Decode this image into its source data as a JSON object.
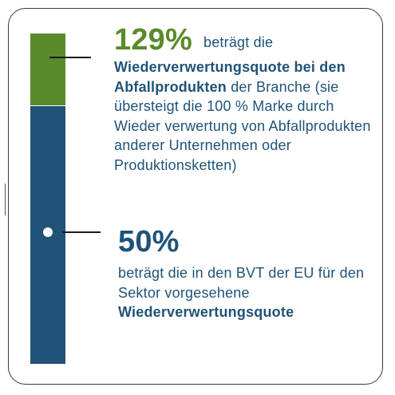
{
  "top_stat": {
    "value": "129%",
    "intro": "beträgt die",
    "highlight": "Wiederverwertungsquote bei den Abfallprodukten",
    "rest": " der Branche (sie übersteigt die 100 % Marke durch Wieder verwertung von Abfallprodukten anderer Unternehmen oder Produktionsketten)"
  },
  "bottom_stat": {
    "value": "50%",
    "intro": "beträgt die in den BVT der EU für den Sektor vorgesehene ",
    "highlight": "Wiederverwertungsquote"
  },
  "colors": {
    "green": "#5a8a2a",
    "blue": "#1f5378"
  }
}
